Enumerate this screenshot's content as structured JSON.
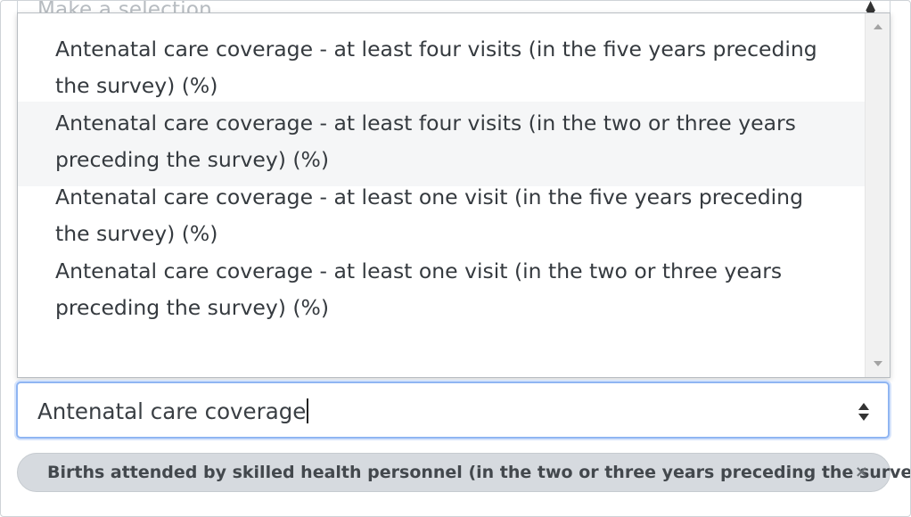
{
  "background_select": {
    "placeholder": "Make a selection"
  },
  "dropdown": {
    "options": [
      {
        "label": "Antenatal care coverage - at least four visits (in the five years preceding the survey) (%)"
      },
      {
        "label": "Antenatal care coverage - at least four visits (in the two or three years preceding the survey) (%)"
      },
      {
        "label": "Antenatal care coverage - at least one visit (in the five years preceding the survey) (%)"
      },
      {
        "label": "Antenatal care coverage - at least one visit (in the two or three years preceding the survey) (%)"
      }
    ],
    "hovered_index": 1
  },
  "search": {
    "value": "Antenatal care coverage"
  },
  "selected": {
    "chips": [
      {
        "label": "Births attended by skilled health personnel (in the two or three years preceding the survey) (%)",
        "remove": "×"
      }
    ]
  },
  "colors": {
    "focus_border": "#8fb5f2",
    "chip_bg": "#d6dadf",
    "hover_bg": "#f5f6f7"
  }
}
